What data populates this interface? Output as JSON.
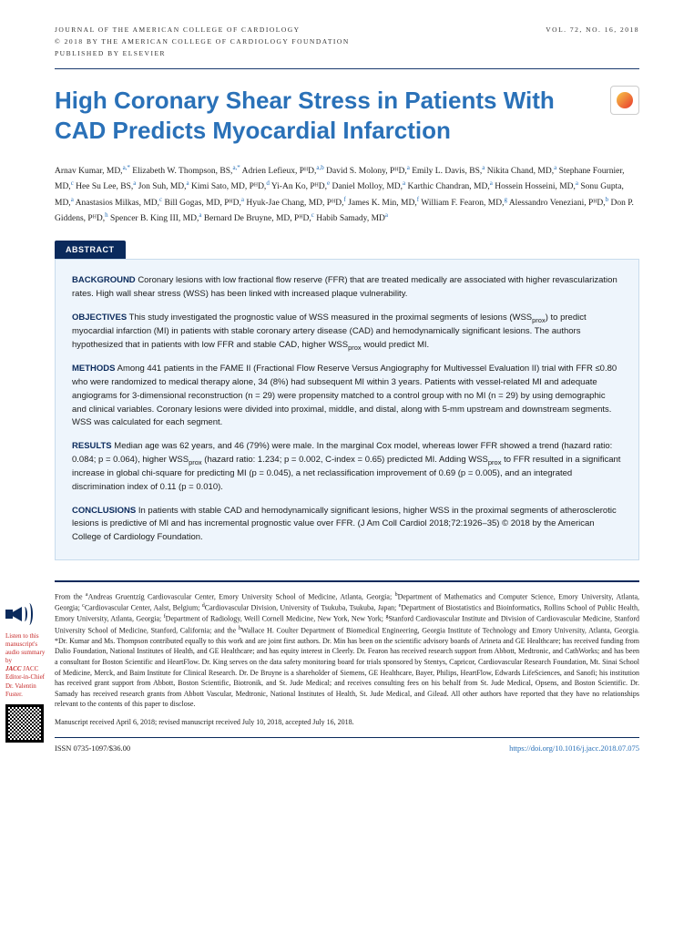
{
  "header": {
    "journal": "JOURNAL OF THE AMERICAN COLLEGE OF CARDIOLOGY",
    "volume": "VOL. 72, NO. 16, 2018",
    "copyright": "© 2018 BY THE AMERICAN COLLEGE OF CARDIOLOGY FOUNDATION",
    "publisher": "PUBLISHED BY ELSEVIER"
  },
  "title": "High Coronary Shear Stress in Patients With CAD Predicts Myocardial Infarction",
  "authors_html": "Arnav Kumar, MD,<sup>a,*</sup> Elizabeth W. Thompson, BS,<sup>a,*</sup> Adrien Lefieux, PᴴD,<sup>a,b</sup> David S. Molony, PᴴD,<sup>a</sup> Emily L. Davis, BS,<sup>a</sup> Nikita Chand, MD,<sup>a</sup> Stephane Fournier, MD,<sup>c</sup> Hee Su Lee, BS,<sup>a</sup> Jon Suh, MD,<sup>a</sup> Kimi Sato, MD, PᴴD,<sup>d</sup> Yi-An Ko, PᴴD,<sup>e</sup> Daniel Molloy, MD,<sup>a</sup> Karthic Chandran, MD,<sup>a</sup> Hossein Hosseini, MD,<sup>a</sup> Sonu Gupta, MD,<sup>a</sup> Anastasios Milkas, MD,<sup>c</sup> Bill Gogas, MD, PᴴD,<sup>a</sup> Hyuk-Jae Chang, MD, PᴴD,<sup>f</sup> James K. Min, MD,<sup>f</sup> William F. Fearon, MD,<sup>g</sup> Alessandro Veneziani, PᴴD,<sup>b</sup> Don P. Giddens, PᴴD,<sup>h</sup> Spencer B. King III, MD,<sup>a</sup> Bernard De Bruyne, MD, PᴴD,<sup>c</sup> Habib Samady, MD<sup>a</sup>",
  "abstract": {
    "label": "ABSTRACT",
    "background": "Coronary lesions with low fractional flow reserve (FFR) that are treated medically are associated with higher revascularization rates. High wall shear stress (WSS) has been linked with increased plaque vulnerability.",
    "objectives": "This study investigated the prognostic value of WSS measured in the proximal segments of lesions (WSSprox) to predict myocardial infarction (MI) in patients with stable coronary artery disease (CAD) and hemodynamically significant lesions. The authors hypothesized that in patients with low FFR and stable CAD, higher WSSprox would predict MI.",
    "methods": "Among 441 patients in the FAME II (Fractional Flow Reserve Versus Angiography for Multivessel Evaluation II) trial with FFR ≤0.80 who were randomized to medical therapy alone, 34 (8%) had subsequent MI within 3 years. Patients with vessel-related MI and adequate angiograms for 3-dimensional reconstruction (n = 29) were propensity matched to a control group with no MI (n = 29) by using demographic and clinical variables. Coronary lesions were divided into proximal, middle, and distal, along with 5-mm upstream and downstream segments. WSS was calculated for each segment.",
    "results": "Median age was 62 years, and 46 (79%) were male. In the marginal Cox model, whereas lower FFR showed a trend (hazard ratio: 0.084; p = 0.064), higher WSSprox (hazard ratio: 1.234; p = 0.002, C-index = 0.65) predicted MI. Adding WSSprox to FFR resulted in a significant increase in global chi-square for predicting MI (p = 0.045), a net reclassification improvement of 0.69 (p = 0.005), and an integrated discrimination index of 0.11 (p = 0.010).",
    "conclusions": "In patients with stable CAD and hemodynamically significant lesions, higher WSS in the proximal segments of atherosclerotic lesions is predictive of MI and has incremental prognostic value over FFR.  (J Am Coll Cardiol 2018;72:1926–35) © 2018 by the American College of Cardiology Foundation."
  },
  "footnote": "From the <sup>a</sup>Andreas Gruentzig Cardiovascular Center, Emory University School of Medicine, Atlanta, Georgia; <sup>b</sup>Department of Mathematics and Computer Science, Emory University, Atlanta, Georgia; <sup>c</sup>Cardiovascular Center, Aalst, Belgium; <sup>d</sup>Cardiovascular Division, University of Tsukuba, Tsukuba, Japan; <sup>e</sup>Department of Biostatistics and Bioinformatics, Rollins School of Public Health, Emory University, Atlanta, Georgia; <sup>f</sup>Department of Radiology, Weill Cornell Medicine, New York, New York; <sup>g</sup>Stanford Cardiovascular Institute and Division of Cardiovascular Medicine, Stanford University School of Medicine, Stanford, California; and the <sup>h</sup>Wallace H. Coulter Department of Biomedical Engineering, Georgia Institute of Technology and Emory University, Atlanta, Georgia. *Dr. Kumar and Ms. Thompson contributed equally to this work and are joint first authors. Dr. Min has been on the scientific advisory boards of Arineta and GE Healthcare; has received funding from Dalio Foundation, National Institutes of Health, and GE Healthcare; and has equity interest in Cleerly. Dr. Fearon has received research support from Abbott, Medtronic, and CathWorks; and has been a consultant for Boston Scientific and HeartFlow. Dr. King serves on the data safety monitoring board for trials sponsored by Stentys, Capricor, Cardiovascular Research Foundation, Mt. Sinai School of Medicine, Merck, and Baim Institute for Clinical Research. Dr. De Bruyne is a shareholder of Siemens, GE Healthcare, Bayer, Philips, HeartFlow, Edwards LifeSciences, and Sanofi; his institution has received grant support from Abbott, Boston Scientific, Biotronik, and St. Jude Medical; and receives consulting fees on his behalf from St. Jude Medical, Opsens, and Boston Scientific. Dr. Samady has received research grants from Abbott Vascular, Medtronic, National Institutes of Health, St. Jude Medical, and Gilead. All other authors have reported that they have no relationships relevant to the contents of this paper to disclose.",
  "manuscript_dates": "Manuscript received April 6, 2018; revised manuscript received July 10, 2018, accepted July 16, 2018.",
  "sidebar": {
    "listen": "Listen to this manuscript's audio summary by",
    "editor_line": "JACC Editor-in-Chief",
    "editor_name": "Dr. Valentin Fuster"
  },
  "footer": {
    "issn": "ISSN 0735-1097/$36.00",
    "doi": "https://doi.org/10.1016/j.jacc.2018.07.075"
  }
}
